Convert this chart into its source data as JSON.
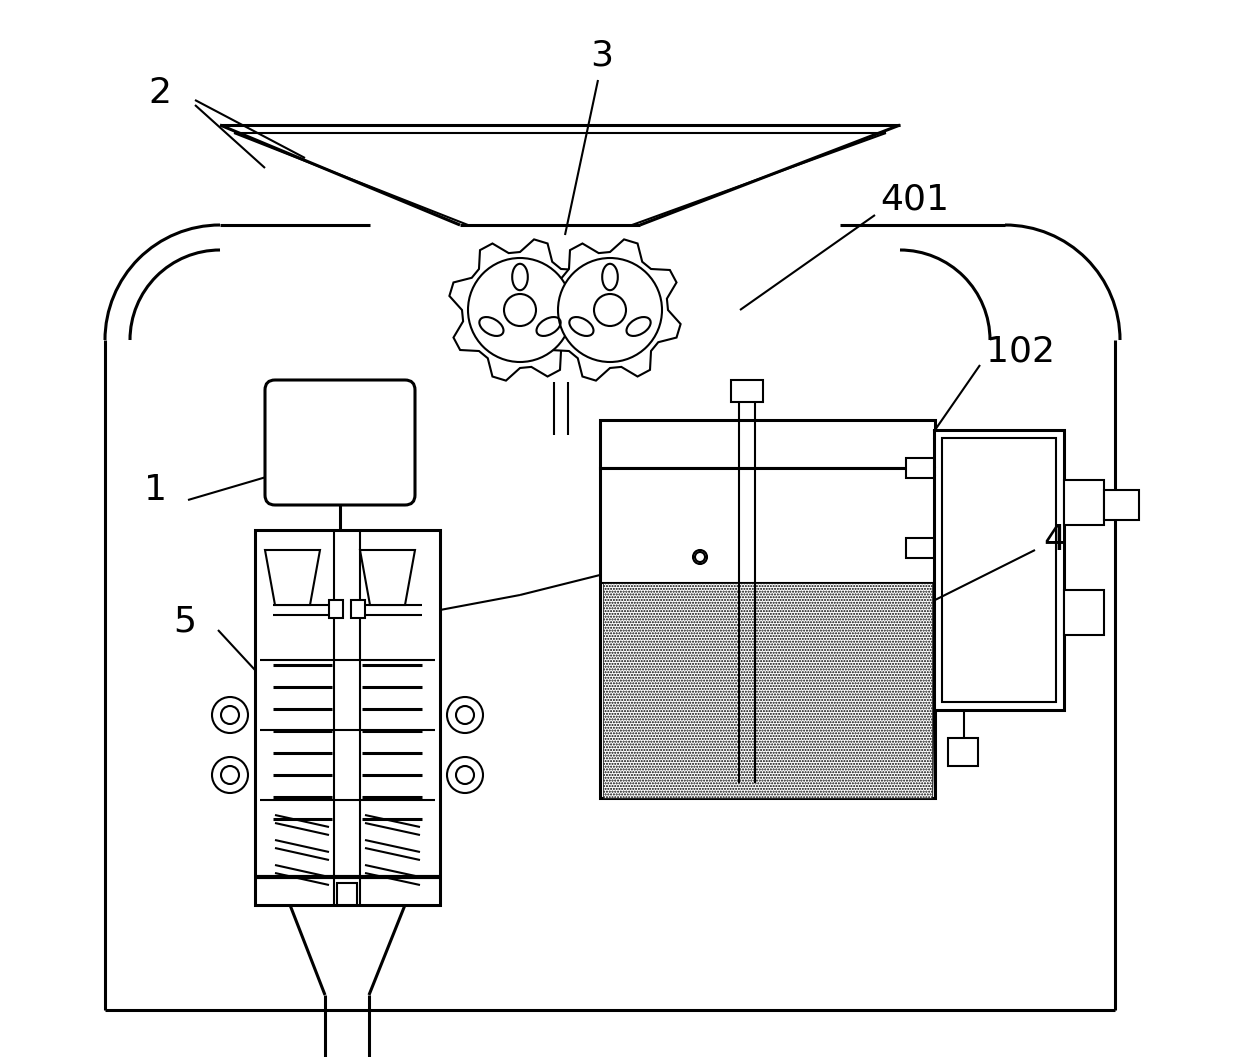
{
  "bg_color": "#ffffff",
  "line_color": "#000000",
  "lw": 1.5,
  "lw2": 2.2,
  "lw3": 3.0,
  "fig_width": 12.4,
  "fig_height": 10.57,
  "label_fontsize": 26
}
